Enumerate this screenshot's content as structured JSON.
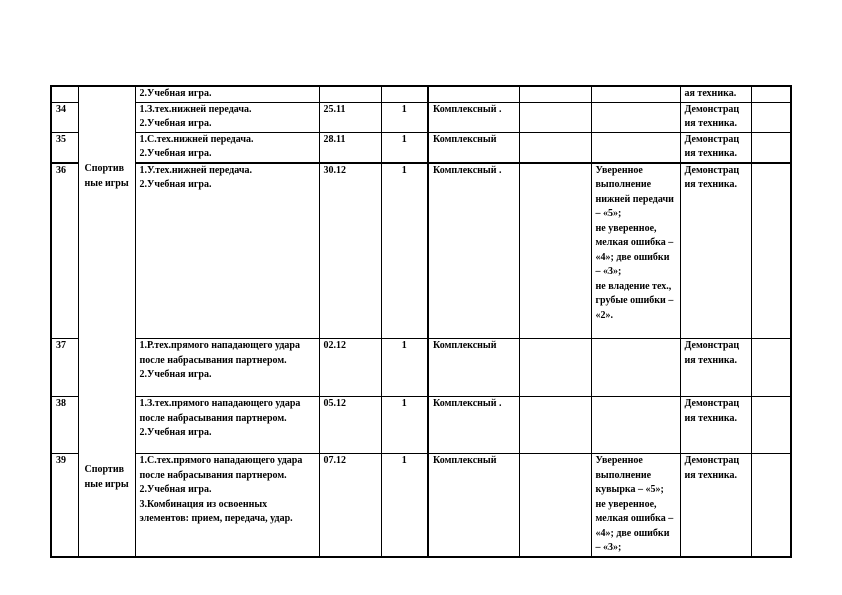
{
  "topic_labels": [
    "Спортив ные игры",
    "Спортив ные игры"
  ],
  "rows": [
    {
      "num": "",
      "content": "2.Учебная игра.",
      "date": "",
      "hours": "",
      "type": "",
      "extra": "",
      "criteria": "",
      "method": "ая техника.",
      "note": ""
    },
    {
      "num": "34",
      "content": "1.З.тех.нижней передача.\n2.Учебная игра.",
      "date": "25.11",
      "hours": "1",
      "type": "Комплексный .",
      "extra": "",
      "criteria": "",
      "method": "Демонстрац ия техника.",
      "note": ""
    },
    {
      "num": "35",
      "content": "1.С.тех.нижней передача.\n2.Учебная игра.",
      "date": "28.11",
      "hours": "1",
      "type": "Комплексный",
      "extra": "",
      "criteria": "",
      "method": "Демонстрац ия техника.",
      "note": ""
    },
    {
      "num": "36",
      "content": "1.У.тех.нижней передача.\n2.Учебная игра.",
      "date": "30.12",
      "hours": "1",
      "type": "Комплексный .",
      "extra": "",
      "criteria": "Уверенное выполнение нижней передачи – «5»;\nне уверенное, мелкая ошибка – «4»; две ошибки – «3»;\nне владение тех., грубые ошибки – «2».",
      "method": "Демонстрац ия техника.",
      "note": ""
    },
    {
      "num": "37",
      "content": "1.Р.тех.прямого нападающего удара после набрасывания партнером.\n2.Учебная игра.",
      "date": "02.12",
      "hours": "1",
      "type": "Комплексный",
      "extra": "",
      "criteria": "",
      "method": "Демонстрац ия техника.",
      "note": ""
    },
    {
      "num": "38",
      "content": "1.З.тех.прямого нападающего удара после набрасывания партнером.\n2.Учебная игра.",
      "date": "05.12",
      "hours": "1",
      "type": "Комплексный .",
      "extra": "",
      "criteria": "",
      "method": "Демонстрац ия техника.",
      "note": ""
    },
    {
      "num": "39",
      "content": "1.С.тех.прямого нападающего удара после набрасывания партнером.\n2.Учебная игра.\n3.Комбинация из освоенных элементов: прием, передача, удар.",
      "date": "07.12",
      "hours": "1",
      "type": "Комплексный",
      "extra": "",
      "criteria": "Уверенное выполнение кувырка – «5»;\nне уверенное, мелкая ошибка – «4»; две ошибки – «3»;",
      "method": "Демонстрац ия техника.",
      "note": ""
    }
  ]
}
